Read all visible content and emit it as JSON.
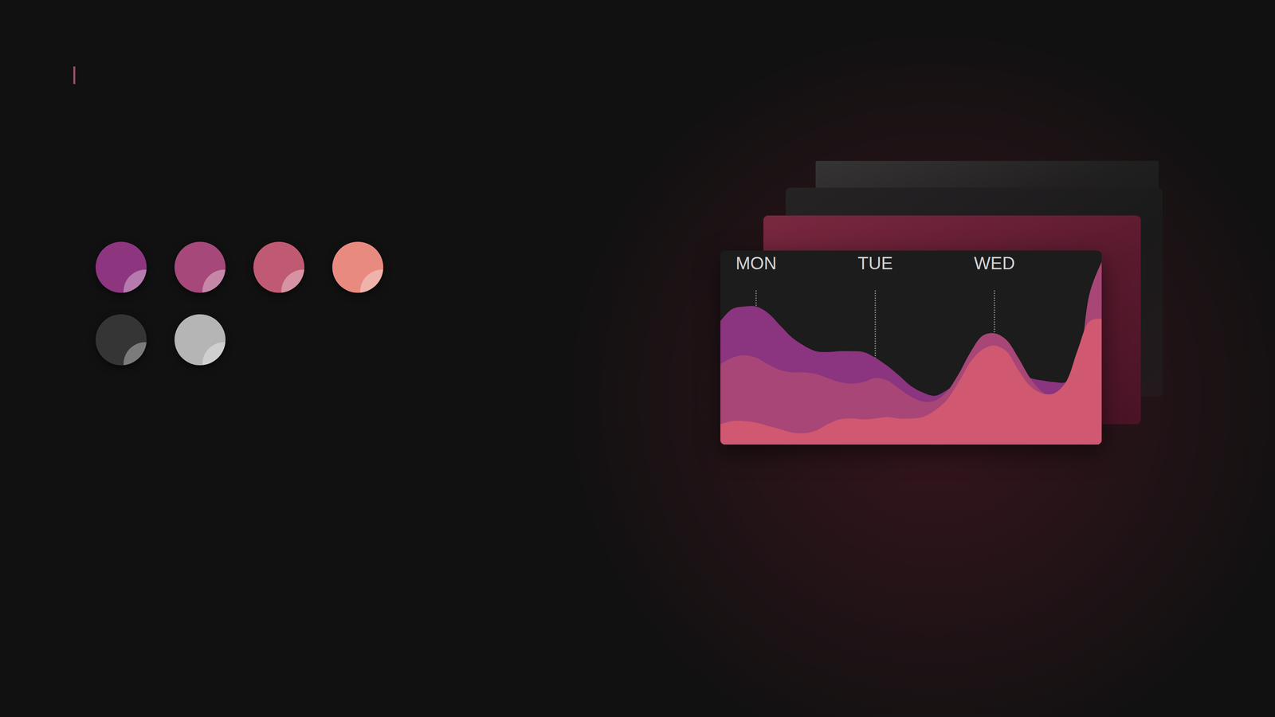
{
  "chart_data": {
    "type": "area",
    "categories": [
      null,
      null,
      null,
      "MON",
      null,
      null,
      null,
      null,
      null,
      null,
      null,
      null,
      null,
      "TUE",
      null,
      null,
      null,
      null,
      null,
      null,
      null,
      null,
      null,
      "WED",
      null,
      null,
      null,
      null,
      null,
      null,
      null,
      null,
      null
    ],
    "series": [
      {
        "color": "#8b347f",
        "values": [
          152,
          167,
          170,
          170,
          162,
          147,
          132,
          122,
          115,
          114,
          115,
          115,
          114,
          107,
          97,
          85,
          72,
          64,
          60,
          67,
          77,
          92,
          102,
          102,
          97,
          89,
          82,
          79,
          77,
          77,
          97,
          167,
          217
        ]
      },
      {
        "color": "#a74677",
        "values": [
          99,
          107,
          110,
          107,
          99,
          92,
          89,
          89,
          87,
          82,
          77,
          75,
          77,
          82,
          79,
          69,
          59,
          53,
          54,
          65,
          87,
          114,
          134,
          137,
          129,
          107,
          82,
          65,
          57,
          62,
          92,
          187,
          225
        ]
      },
      {
        "color": "#d05870",
        "values": [
          25,
          29,
          29,
          27,
          23,
          19,
          15,
          14,
          17,
          25,
          31,
          32,
          31,
          32,
          34,
          32,
          32,
          34,
          42,
          55,
          77,
          102,
          117,
          122,
          115,
          92,
          72,
          63,
          63,
          77,
          117,
          152,
          155
        ]
      }
    ],
    "ylim": [
      0,
      239
    ],
    "grid": true,
    "tick_labels": "x"
  }
}
